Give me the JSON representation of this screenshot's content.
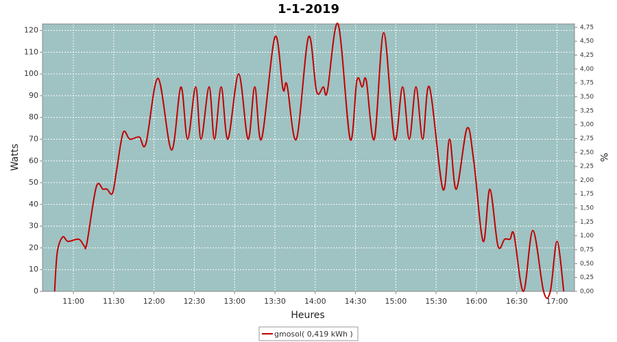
{
  "chart_data": {
    "type": "line",
    "title": "1-1-2019",
    "xlabel": "Heures",
    "ylabel": "Watts",
    "y2label": "%",
    "x": [
      "10:46",
      "10:48",
      "10:52",
      "10:56",
      "11:04",
      "11:08",
      "11:10",
      "11:17",
      "11:22",
      "11:25",
      "11:29",
      "11:32",
      "11:37",
      "11:42",
      "11:49",
      "11:54",
      "12:03",
      "12:13",
      "12:20",
      "12:25",
      "12:31",
      "12:35",
      "12:41",
      "12:45",
      "12:50",
      "12:55",
      "13:03",
      "13:10",
      "13:15",
      "13:20",
      "13:30",
      "13:36",
      "13:39",
      "13:46",
      "13:55",
      "14:01",
      "14:06",
      "14:09",
      "14:17",
      "14:26",
      "14:31",
      "14:35",
      "14:38",
      "14:44",
      "14:51",
      "14:59",
      "15:05",
      "15:10",
      "15:15",
      "15:20",
      "15:25",
      "15:35",
      "15:40",
      "15:45",
      "15:53",
      "15:58",
      "16:05",
      "16:10",
      "16:16",
      "16:21",
      "16:25",
      "16:28",
      "16:35",
      "16:42",
      "16:50",
      "16:55",
      "17:00",
      "17:05"
    ],
    "series": [
      {
        "name": "gmosol( 0,419 kWh )",
        "color": "#c00000",
        "values": [
          0,
          18,
          25,
          23,
          24,
          21,
          22,
          48,
          47,
          47,
          45,
          55,
          73,
          70,
          71,
          68,
          98,
          65,
          94,
          70,
          94,
          70,
          94,
          70,
          94,
          70,
          100,
          70,
          94,
          70,
          117,
          93,
          95,
          70,
          117,
          92,
          94,
          92,
          123,
          70,
          97,
          94,
          97,
          70,
          119,
          70,
          94,
          70,
          94,
          70,
          94,
          47,
          70,
          47,
          75,
          60,
          23,
          47,
          21,
          24,
          24,
          26,
          0,
          28,
          0,
          0,
          23,
          0
        ]
      }
    ],
    "xlim": [
      "10:37",
      "17:13"
    ],
    "xticks": [
      "11:00",
      "11:30",
      "12:00",
      "12:30",
      "13:00",
      "13:30",
      "14:00",
      "14:30",
      "15:00",
      "15:30",
      "16:00",
      "16:30",
      "17:00"
    ],
    "ylim": [
      0,
      123
    ],
    "yticks": [
      0,
      10,
      20,
      30,
      40,
      50,
      60,
      70,
      80,
      90,
      100,
      110,
      120
    ],
    "y2lim": [
      0,
      4.81
    ],
    "y2ticks": [
      {
        "value": 0,
        "label": "0,00"
      },
      {
        "value": 0.25,
        "label": "0,25"
      },
      {
        "value": 0.5,
        "label": "0,50"
      },
      {
        "value": 0.75,
        "label": "0,75"
      },
      {
        "value": 1,
        "label": "1,00"
      },
      {
        "value": 1.25,
        "label": "1,25"
      },
      {
        "value": 1.5,
        "label": "1,50"
      },
      {
        "value": 1.75,
        "label": "1,75"
      },
      {
        "value": 2,
        "label": "2,00"
      },
      {
        "value": 2.25,
        "label": "2,25"
      },
      {
        "value": 2.5,
        "label": "2,50"
      },
      {
        "value": 2.75,
        "label": "2,75"
      },
      {
        "value": 3,
        "label": "3,00"
      },
      {
        "value": 3.25,
        "label": "3,25"
      },
      {
        "value": 3.5,
        "label": "3,50"
      },
      {
        "value": 3.75,
        "label": "3,75"
      },
      {
        "value": 4,
        "label": "4,00"
      },
      {
        "value": 4.25,
        "label": "4,25"
      },
      {
        "value": 4.5,
        "label": "4,50"
      },
      {
        "value": 4.75,
        "label": "4,75"
      }
    ],
    "grid": true,
    "plot_background": "#9fc2c2",
    "legend": "bottom"
  }
}
